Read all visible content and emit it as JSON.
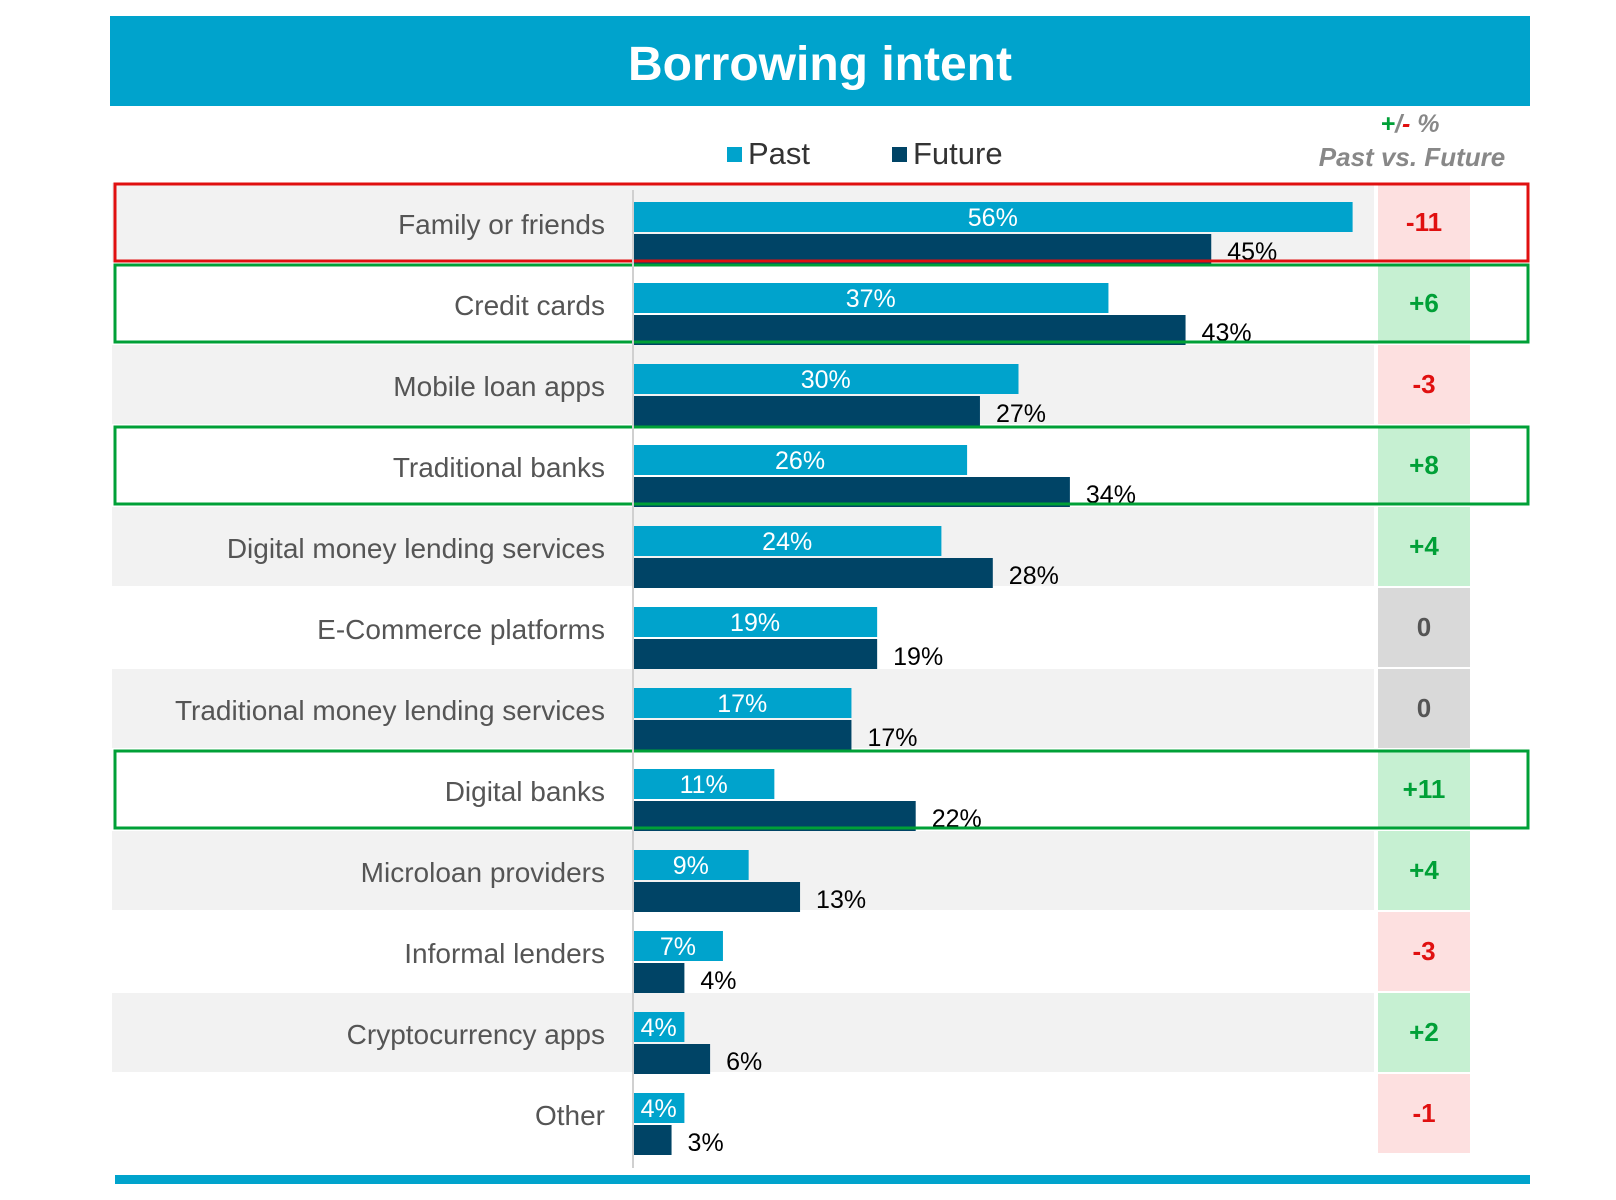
{
  "chart_data": {
    "type": "bar",
    "title": "Borrowing intent",
    "categories": [
      "Family or friends",
      "Credit cards",
      "Mobile loan apps",
      "Traditional banks",
      "Digital money lending services",
      "E-Commerce platforms",
      "Traditional money lending services",
      "Digital banks",
      "Microloan providers",
      "Informal lenders",
      "Cryptocurrency apps",
      "Other"
    ],
    "series": [
      {
        "name": "Past",
        "values": [
          56,
          37,
          30,
          26,
          24,
          19,
          17,
          11,
          9,
          7,
          4,
          4
        ],
        "labels": [
          "56%",
          "37%",
          "30%",
          "26%",
          "24%",
          "19%",
          "17%",
          "11%",
          "9%",
          "7%",
          "4%",
          "4%"
        ]
      },
      {
        "name": "Future",
        "values": [
          45,
          43,
          27,
          34,
          28,
          19,
          17,
          22,
          13,
          4,
          6,
          3
        ],
        "labels": [
          "45%",
          "43%",
          "27%",
          "34%",
          "28%",
          "19%",
          "17%",
          "22%",
          "13%",
          "4%",
          "6%",
          "3%"
        ]
      }
    ],
    "difference": {
      "header_symbols": {
        "plus": "+",
        "slash": "/",
        "minus": "-",
        "percent": " %"
      },
      "header_subtitle": "Past vs. Future",
      "values": [
        "-11",
        "+6",
        "-3",
        "+8",
        "+4",
        "0",
        "0",
        "+11",
        "+4",
        "-3",
        "+2",
        "-1"
      ],
      "status": [
        "down",
        "up",
        "down",
        "up",
        "up",
        "neutral",
        "neutral",
        "up",
        "up",
        "down",
        "up",
        "down"
      ]
    },
    "highlighted": [
      "down",
      "up",
      "none",
      "up",
      "none",
      "none",
      "none",
      "up",
      "none",
      "none",
      "none",
      "none"
    ],
    "legend_position": "top-center",
    "xlim": [
      0,
      56
    ],
    "grid": false
  },
  "colors": {
    "past": "#00A3CC",
    "future": "#004466",
    "title_band": "#00A3CC",
    "row_shade": "#F2F2F2",
    "up_text": "#00A037",
    "up_bg": "#C6F0D2",
    "down_text": "#E01010",
    "down_bg": "#FDE0E0",
    "neutral_text": "#555555",
    "neutral_bg": "#D9D9D9",
    "highlight_down": "#E01010",
    "highlight_up": "#00A037"
  }
}
